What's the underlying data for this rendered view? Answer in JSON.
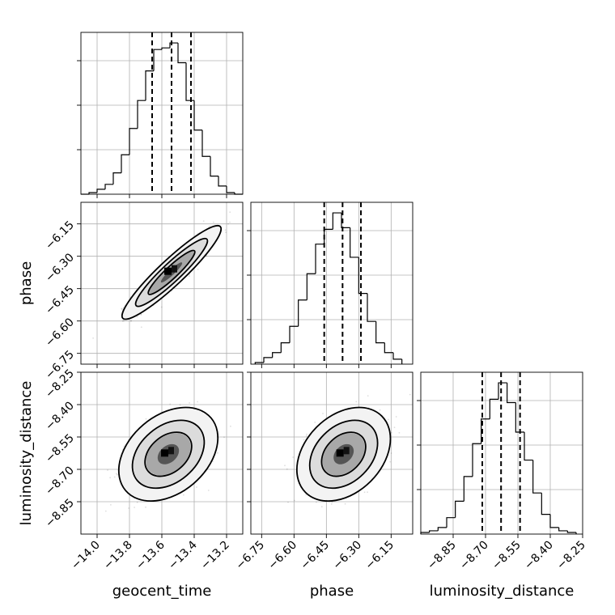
{
  "chart_data": {
    "type": "corner",
    "parameters": [
      {
        "name": "geocent_time",
        "range": [
          -14.1,
          -13.1
        ],
        "ticks": [
          -14.0,
          -13.8,
          -13.6,
          -13.4,
          -13.2
        ],
        "tick_labels": [
          "−14.0",
          "−13.8",
          "−13.6",
          "−13.4",
          "−13.2"
        ],
        "quantiles": [
          -13.66,
          -13.54,
          -13.42
        ],
        "histogram": {
          "bin_edges": [
            -14.1,
            -14.05,
            -14.0,
            -13.95,
            -13.9,
            -13.85,
            -13.8,
            -13.75,
            -13.7,
            -13.65,
            -13.6,
            -13.55,
            -13.5,
            -13.45,
            -13.4,
            -13.35,
            -13.3,
            -13.25,
            -13.2,
            -13.15,
            -13.1
          ],
          "counts": [
            0,
            1,
            3,
            6,
            13,
            24,
            40,
            57,
            75,
            88,
            89,
            92,
            80,
            57,
            39,
            23,
            11,
            5,
            1,
            0
          ]
        }
      },
      {
        "name": "phase",
        "range": [
          -6.8,
          -6.05
        ],
        "ticks": [
          -6.75,
          -6.6,
          -6.45,
          -6.3,
          -6.15
        ],
        "tick_labels": [
          "−6.75",
          "−6.60",
          "−6.45",
          "−6.30",
          "−6.15"
        ],
        "quantiles": [
          -6.46,
          -6.375,
          -6.29
        ],
        "histogram": {
          "bin_edges": [
            -6.78,
            -6.74,
            -6.7,
            -6.66,
            -6.62,
            -6.58,
            -6.54,
            -6.5,
            -6.46,
            -6.42,
            -6.38,
            -6.34,
            -6.3,
            -6.26,
            -6.22,
            -6.18,
            -6.14,
            -6.1
          ],
          "counts": [
            1,
            4,
            7,
            13,
            23,
            39,
            55,
            73,
            82,
            92,
            83,
            65,
            43,
            26,
            13,
            7,
            3
          ]
        }
      },
      {
        "name": "luminosity_distance",
        "range": [
          -9.0,
          -8.25
        ],
        "ticks": [
          -8.85,
          -8.7,
          -8.55,
          -8.4,
          -8.25
        ],
        "tick_labels": [
          "−8.85",
          "−8.70",
          "−8.55",
          "−8.40",
          "−8.25"
        ],
        "quantiles": [
          -8.715,
          -8.628,
          -8.54
        ],
        "histogram": {
          "bin_edges": [
            -9.0,
            -8.96,
            -8.92,
            -8.88,
            -8.84,
            -8.8,
            -8.76,
            -8.72,
            -8.68,
            -8.64,
            -8.6,
            -8.56,
            -8.52,
            -8.48,
            -8.44,
            -8.4,
            -8.36,
            -8.32,
            -8.28
          ],
          "counts": [
            1,
            2,
            4,
            10,
            20,
            35,
            55,
            70,
            82,
            92,
            80,
            62,
            45,
            25,
            12,
            4,
            2,
            1
          ]
        }
      }
    ],
    "joint": [
      {
        "x": "geocent_time",
        "y": "phase",
        "center": [
          -13.54,
          -6.375
        ],
        "correlation": 0.93
      },
      {
        "x": "geocent_time",
        "y": "luminosity_distance",
        "center": [
          -13.56,
          -8.63
        ],
        "correlation": 0.35
      },
      {
        "x": "phase",
        "y": "luminosity_distance",
        "center": [
          -6.37,
          -8.63
        ],
        "correlation": 0.33
      }
    ],
    "grid": true,
    "axis_labels": {
      "x": [
        "geocent_time",
        "phase",
        "luminosity_distance"
      ],
      "y": [
        "phase",
        "luminosity_distance"
      ]
    }
  }
}
